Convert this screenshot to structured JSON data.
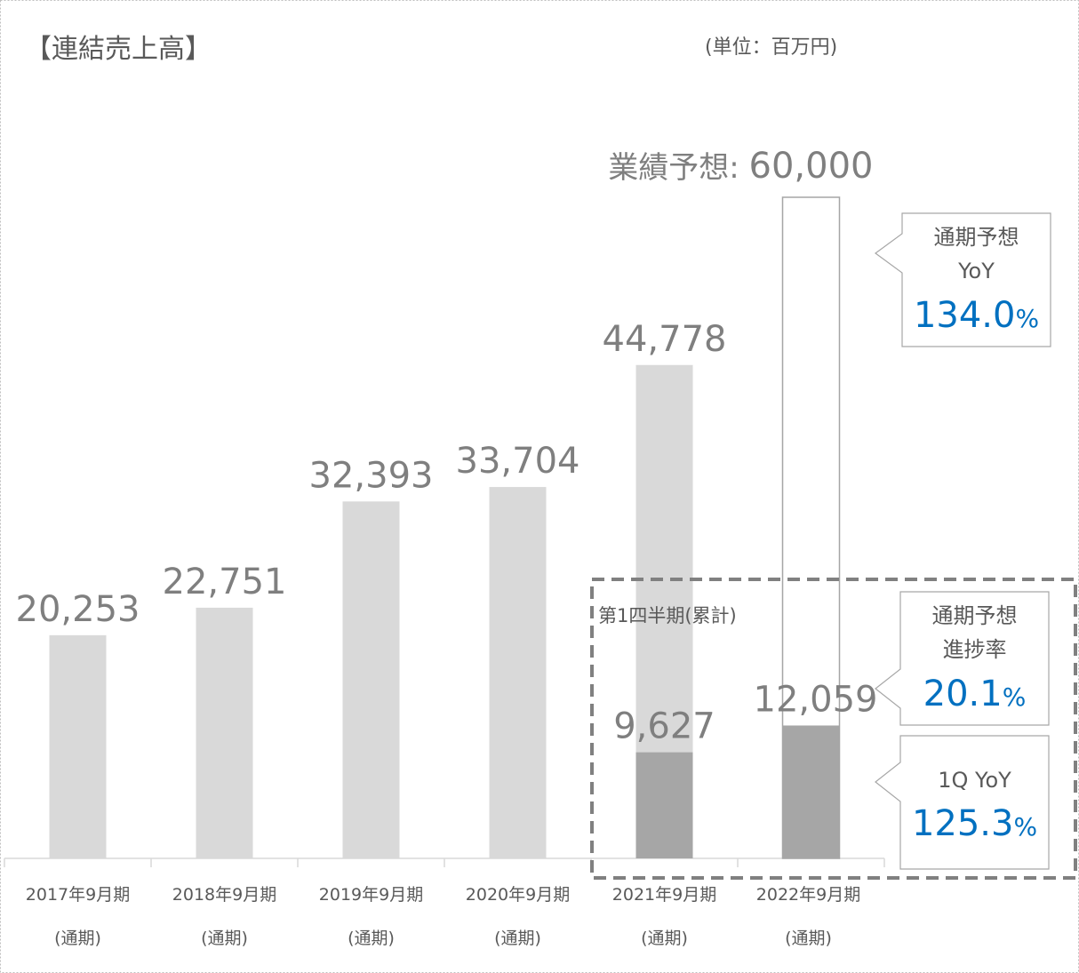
{
  "chart_data": {
    "type": "bar",
    "title": "【連結売上高】",
    "unit_note": "(単位：百万円)",
    "categories": [
      [
        "2017年9月期",
        "(通期)"
      ],
      [
        "2018年9月期",
        "(通期)"
      ],
      [
        "2019年9月期",
        "(通期)"
      ],
      [
        "2020年9月期",
        "(通期)"
      ],
      [
        "2021年9月期",
        "(通期)"
      ],
      [
        "2022年9月期",
        "(通期)"
      ]
    ],
    "series": [
      {
        "color": "#d9d9d9",
        "values": [
          20253,
          22751,
          32393,
          33704,
          44778,
          null
        ],
        "value_labels": [
          "20,253",
          "22,751",
          "32,393",
          "33,704",
          "44,778",
          null
        ]
      },
      {
        "color": "#a6a6a6",
        "values": [
          null,
          null,
          null,
          null,
          9627,
          12059
        ],
        "value_labels": [
          null,
          null,
          null,
          null,
          "9,627",
          "12,059"
        ]
      }
    ],
    "forecast": {
      "index": 5,
      "label": "業績予想: ",
      "value": 60000,
      "value_label": "60,000",
      "color": "#a6a6a6"
    },
    "box_label": "第1四半期(累計)",
    "callouts": [
      {
        "lines": [
          "通期予想",
          "YoY"
        ],
        "value": "134.0",
        "unit": "%"
      },
      {
        "lines": [
          "通期予想",
          "進捗率"
        ],
        "value": "20.1",
        "unit": "%"
      },
      {
        "lines": [
          "1Q YoY"
        ],
        "value": "125.3",
        "unit": "%"
      }
    ]
  }
}
